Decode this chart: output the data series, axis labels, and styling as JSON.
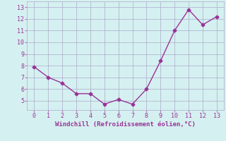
{
  "x": [
    0,
    1,
    2,
    3,
    4,
    5,
    6,
    7,
    8,
    9,
    10,
    11,
    12,
    13
  ],
  "y": [
    7.9,
    7.0,
    6.5,
    5.6,
    5.6,
    4.7,
    5.1,
    4.7,
    6.0,
    8.4,
    11.0,
    12.8,
    11.5,
    12.2
  ],
  "line_color": "#993399",
  "marker": "D",
  "marker_size": 2.5,
  "line_width": 1.0,
  "xlabel": "Windchill (Refroidissement éolien,°C)",
  "xlabel_fontsize": 6.5,
  "bg_color": "#d5f0f0",
  "grid_color": "#aaaacc",
  "tick_color": "#993399",
  "label_color": "#993399",
  "xlim": [
    -0.5,
    13.5
  ],
  "ylim": [
    4.2,
    13.5
  ],
  "yticks": [
    5,
    6,
    7,
    8,
    9,
    10,
    11,
    12,
    13
  ],
  "xticks": [
    0,
    1,
    2,
    3,
    4,
    5,
    6,
    7,
    8,
    9,
    10,
    11,
    12,
    13
  ],
  "tick_labelsize": 6.0
}
